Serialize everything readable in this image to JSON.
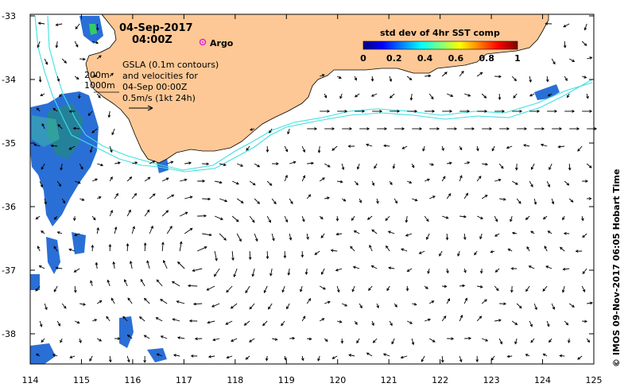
{
  "title": {
    "date": "04-Sep-2017",
    "time": "04:00Z"
  },
  "argo_label": "Argo",
  "colorbar": {
    "title": "std dev of 4hr SST comp",
    "ticks": [
      "0",
      "0.2",
      "0.4",
      "0.6",
      "0.8",
      "1"
    ],
    "stops": [
      "#00007f",
      "#0000ff",
      "#0080ff",
      "#00ffff",
      "#80ff80",
      "#ffff00",
      "#ff8000",
      "#ff0000",
      "#7f0000"
    ]
  },
  "legend_lines": {
    "line1": "GSLA (0.1m contours)",
    "line2": "and velocities for",
    "line3": "04-Sep 00:00Z",
    "line4": "0.5m/s (1kt 24h)"
  },
  "depth_labels": {
    "shallow": "200m",
    "deep": "1000m"
  },
  "credit": "© IMOS 09-Nov-2017 06:05 Hobart Time",
  "axes": {
    "lon_ticks": [
      "114",
      "115",
      "116",
      "117",
      "118",
      "119",
      "120",
      "121",
      "122",
      "123",
      "124",
      "125"
    ],
    "lat_ticks": [
      "-33",
      "-34",
      "-35",
      "-36",
      "-37",
      "-38"
    ]
  },
  "colors": {
    "land": "#fdc895",
    "isobath": "#40e0e0",
    "argo": "#e020e0",
    "sst_blue": "#2a6fd6"
  }
}
